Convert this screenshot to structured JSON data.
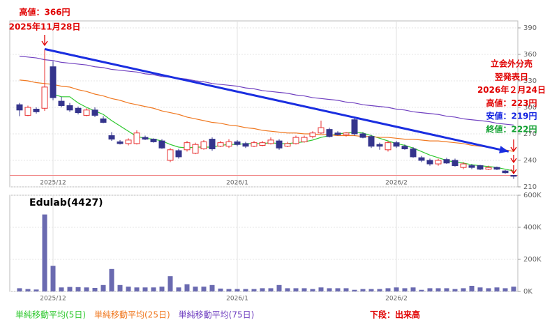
{
  "chart_data": [
    {
      "type": "candlestick",
      "categories": [
        null,
        null,
        null,
        null,
        "2025/12",
        null,
        null,
        null,
        null,
        null,
        null,
        null,
        null,
        null,
        null,
        null,
        null,
        null,
        null,
        null,
        null,
        null,
        null,
        null,
        null,
        null,
        "2026/1",
        null,
        null,
        null,
        null,
        null,
        null,
        null,
        null,
        null,
        null,
        null,
        null,
        null,
        null,
        null,
        null,
        null,
        null,
        "2026/2",
        null,
        null,
        null,
        null,
        null,
        null,
        null,
        null,
        null,
        null,
        null,
        null,
        null,
        null
      ],
      "open": [
        303,
        291,
        298,
        299,
        346,
        307,
        302,
        299,
        291,
        297,
        287,
        268,
        261,
        259,
        259,
        266,
        264,
        262,
        240,
        251,
        252,
        248,
        253,
        264,
        256,
        256,
        261,
        259,
        256,
        257,
        259,
        262,
        256,
        259,
        261,
        267,
        271,
        275,
        271,
        269,
        286,
        270,
        267,
        258,
        252,
        260,
        256,
        253,
        243,
        240,
        236,
        241,
        240,
        232,
        234,
        234,
        230,
        232,
        228,
        223
      ],
      "high": [
        305,
        302,
        300,
        366,
        352,
        312,
        305,
        301,
        299,
        300,
        290,
        272,
        263,
        265,
        274,
        268,
        265,
        264,
        254,
        253,
        262,
        260,
        263,
        266,
        262,
        264,
        263,
        261,
        262,
        262,
        266,
        264,
        261,
        268,
        268,
        273,
        285,
        277,
        273,
        272,
        288,
        272,
        269,
        260,
        262,
        262,
        258,
        255,
        245,
        242,
        242,
        243,
        242,
        238,
        236,
        235,
        234,
        233,
        229,
        223
      ],
      "low": [
        290,
        290,
        293,
        296,
        308,
        300,
        295,
        292,
        290,
        289,
        282,
        262,
        258,
        257,
        258,
        263,
        260,
        253,
        238,
        242,
        250,
        247,
        252,
        251,
        255,
        254,
        256,
        254,
        255,
        256,
        258,
        252,
        255,
        258,
        260,
        265,
        270,
        266,
        268,
        267,
        268,
        265,
        254,
        252,
        250,
        254,
        252,
        243,
        238,
        234,
        234,
        236,
        233,
        230,
        230,
        229,
        229,
        229,
        225,
        219
      ],
      "close": [
        297,
        300,
        295,
        323,
        311,
        302,
        297,
        294,
        297,
        291,
        283,
        264,
        259,
        263,
        271,
        264,
        261,
        254,
        252,
        244,
        260,
        258,
        261,
        253,
        260,
        261,
        258,
        256,
        260,
        260,
        263,
        254,
        259,
        266,
        266,
        271,
        277,
        267,
        269,
        271,
        270,
        266,
        256,
        256,
        260,
        256,
        253,
        244,
        240,
        236,
        240,
        237,
        234,
        236,
        232,
        230,
        232,
        230,
        226,
        222
      ],
      "up_color": "#e83030",
      "down_color": "#34348c",
      "series": [
        {
          "name": "単純移動平均(5日)",
          "color": "#2ec82e",
          "values": [
            null,
            null,
            null,
            null,
            315,
            312,
            312,
            305,
            300,
            296,
            292,
            285,
            279,
            273,
            267,
            265,
            264,
            262,
            258,
            255,
            254,
            255,
            255,
            255,
            257,
            258,
            258,
            259,
            259,
            259,
            260,
            259,
            259,
            260,
            261,
            263,
            266,
            268,
            270,
            271,
            272,
            271,
            268,
            265,
            262,
            259,
            257,
            254,
            250,
            246,
            243,
            240,
            238,
            237,
            235,
            234,
            233,
            232,
            230,
            228
          ]
        },
        {
          "name": "単純移動平均(25日)",
          "color": "#f07820",
          "values": [
            331,
            330,
            328,
            327,
            326,
            324,
            323,
            320,
            318,
            315,
            313,
            310,
            308,
            305,
            303,
            301,
            299,
            296,
            294,
            292,
            289,
            287,
            285,
            283,
            282,
            280,
            279,
            277,
            276,
            274,
            273,
            272,
            271,
            271,
            270,
            270,
            269,
            269,
            268,
            268,
            268,
            267,
            267,
            266,
            266,
            265,
            264,
            264,
            263,
            262,
            262,
            261,
            260,
            259,
            257,
            256,
            255,
            253,
            252,
            250
          ]
        },
        {
          "name": "単純移動平均(75日)",
          "color": "#7040c0",
          "values": [
            358,
            357,
            356,
            354,
            353,
            351,
            350,
            349,
            348,
            346,
            345,
            343,
            342,
            341,
            340,
            338,
            337,
            335,
            334,
            333,
            332,
            330,
            329,
            327,
            326,
            325,
            324,
            322,
            321,
            319,
            318,
            317,
            316,
            314,
            313,
            311,
            310,
            309,
            308,
            306,
            305,
            303,
            302,
            301,
            300,
            298,
            297,
            295,
            294,
            293,
            292,
            290,
            289,
            287,
            286,
            285,
            284,
            282,
            281,
            280
          ]
        }
      ],
      "trendline": {
        "color": "#1a2ee0",
        "start": {
          "index": 3,
          "value": 366
        },
        "end": {
          "index": 58.4,
          "value": 250
        }
      },
      "reference_line": {
        "value": 223,
        "color": "#f08080"
      },
      "ylim": [
        210,
        390
      ],
      "yticks": [
        210,
        240,
        270,
        300,
        330,
        360,
        390
      ],
      "grid": true,
      "annotations": {
        "left": [
          {
            "text": "高値：366円",
            "color": "#e00000"
          },
          {
            "text": "2025年11月28日",
            "color": "#e00000"
          }
        ],
        "right": [
          {
            "text": "立会外分売",
            "color": "#e00000"
          },
          {
            "text": "翌発表日",
            "color": "#e00000"
          },
          {
            "text": "2026年２月24日",
            "color": "#e00000"
          },
          {
            "text": "高値：223円",
            "color": "#e00000"
          },
          {
            "text": "安値：219円",
            "color": "#1020e0"
          },
          {
            "text": "終値：222円",
            "color": "#10a030"
          }
        ]
      }
    },
    {
      "type": "bar",
      "title": "Edulab(4427)",
      "note": "下段：出来高",
      "color": "#6a6ab0",
      "categories": [
        null,
        null,
        null,
        null,
        "2025/12",
        null,
        null,
        null,
        null,
        null,
        null,
        null,
        null,
        null,
        null,
        null,
        null,
        null,
        null,
        null,
        null,
        null,
        null,
        null,
        null,
        null,
        "2026/1",
        null,
        null,
        null,
        null,
        null,
        null,
        null,
        null,
        null,
        null,
        null,
        null,
        null,
        null,
        null,
        null,
        null,
        null,
        "2026/2",
        null,
        null,
        null,
        null,
        null,
        null,
        null,
        null,
        null,
        null,
        null,
        null,
        null,
        null
      ],
      "values": [
        20000,
        15000,
        12000,
        480000,
        160000,
        25000,
        28000,
        27000,
        25000,
        22000,
        40000,
        140000,
        40000,
        30000,
        25000,
        25000,
        25000,
        30000,
        95000,
        25000,
        45000,
        30000,
        30000,
        40000,
        18000,
        15000,
        15000,
        15000,
        15000,
        20000,
        20000,
        40000,
        20000,
        20000,
        20000,
        15000,
        25000,
        20000,
        20000,
        20000,
        10000,
        15000,
        15000,
        15000,
        20000,
        25000,
        20000,
        25000,
        10000,
        20000,
        20000,
        20000,
        15000,
        20000,
        35000,
        25000,
        20000,
        25000,
        20000,
        30000
      ],
      "ylim": [
        0,
        600000
      ],
      "yticks": [
        {
          "value": 0,
          "label": "0K"
        },
        {
          "value": 200000,
          "label": "200K"
        },
        {
          "value": 400000,
          "label": "400K"
        },
        {
          "value": 600000,
          "label": "600K"
        }
      ],
      "grid": true
    }
  ]
}
